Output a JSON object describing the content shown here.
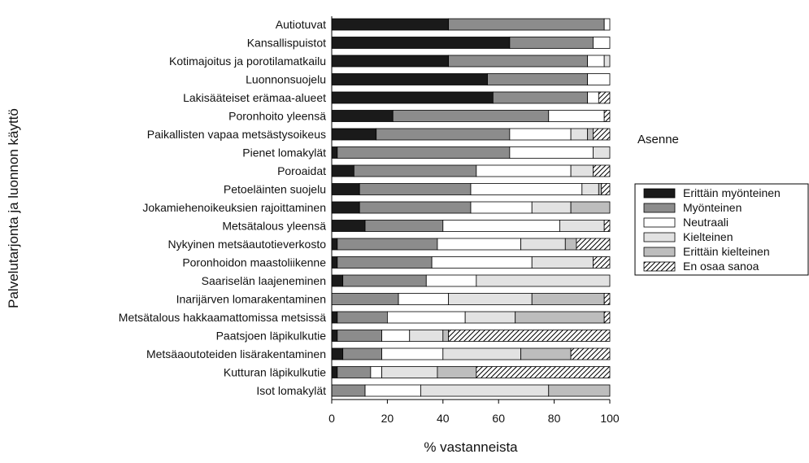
{
  "chart_data": {
    "type": "bar",
    "orientation": "horizontal",
    "stacked": true,
    "xlabel": "% vastanneista",
    "ylabel": "Palvelutarjonta ja luonnon käyttö",
    "xlim": [
      0,
      100
    ],
    "xticks": [
      0,
      20,
      40,
      60,
      80,
      100
    ],
    "grid": false,
    "legend": {
      "title": "Asenne",
      "placement": "right"
    },
    "categories": [
      "Autiotuvat",
      "Kansallispuistot",
      "Kotimajoitus ja porotilamatkailu",
      "Luonnonsuojelu",
      "Lakisääteiset erämaa-alueet",
      "Poronhoito yleensä",
      "Paikallisten vapaa metsästysoikeus",
      "Pienet lomakylät",
      "Poroaidat",
      "Petoeläinten suojelu",
      "Jokamiehenoikeuksien rajoittaminen",
      "Metsätalous yleensä",
      "Nykyinen metsäautotieverkosto",
      "Poronhoidon maastoliikenne",
      "Saariselän laajeneminen",
      "Inarijärven lomarakentaminen",
      "Metsätalous hakkaamattomissa metsissä",
      "Paatsjoen läpikulkutie",
      "Metsäaoutoteiden lisärakentaminen",
      "Kutturan läpikulkutie",
      "Isot lomakylät"
    ],
    "series": [
      {
        "name": "Erittäin myönteinen",
        "fill": "#1a1a1a",
        "pattern": "none",
        "values": [
          42,
          64,
          42,
          56,
          58,
          22,
          16,
          2,
          8,
          10,
          10,
          12,
          2,
          2,
          4,
          0,
          2,
          2,
          4,
          2,
          0
        ]
      },
      {
        "name": "Myönteinen",
        "fill": "#8c8c8c",
        "pattern": "none",
        "values": [
          56,
          30,
          50,
          36,
          34,
          56,
          48,
          62,
          44,
          40,
          40,
          28,
          36,
          34,
          30,
          24,
          18,
          16,
          14,
          12,
          12
        ]
      },
      {
        "name": "Neutraali",
        "fill": "#ffffff",
        "pattern": "none",
        "values": [
          2,
          6,
          6,
          8,
          4,
          20,
          22,
          30,
          34,
          40,
          22,
          42,
          30,
          36,
          18,
          18,
          28,
          10,
          22,
          4,
          20
        ]
      },
      {
        "name": "Kielteinen",
        "fill": "#e2e2e2",
        "pattern": "none",
        "values": [
          0,
          0,
          2,
          0,
          0,
          0,
          6,
          6,
          8,
          6,
          14,
          16,
          16,
          22,
          48,
          30,
          18,
          12,
          28,
          20,
          46
        ]
      },
      {
        "name": "Erittäin kielteinen",
        "fill": "#bdbdbd",
        "pattern": "none",
        "values": [
          0,
          0,
          0,
          0,
          0,
          0,
          2,
          0,
          0,
          1,
          14,
          0,
          4,
          0,
          0,
          26,
          32,
          2,
          18,
          14,
          22
        ]
      },
      {
        "name": "En osaa sanoa",
        "fill": "#ffffff",
        "pattern": "hatch",
        "values": [
          0,
          0,
          0,
          0,
          4,
          2,
          6,
          0,
          6,
          3,
          0,
          2,
          12,
          6,
          0,
          2,
          2,
          58,
          14,
          48,
          0
        ]
      }
    ]
  }
}
